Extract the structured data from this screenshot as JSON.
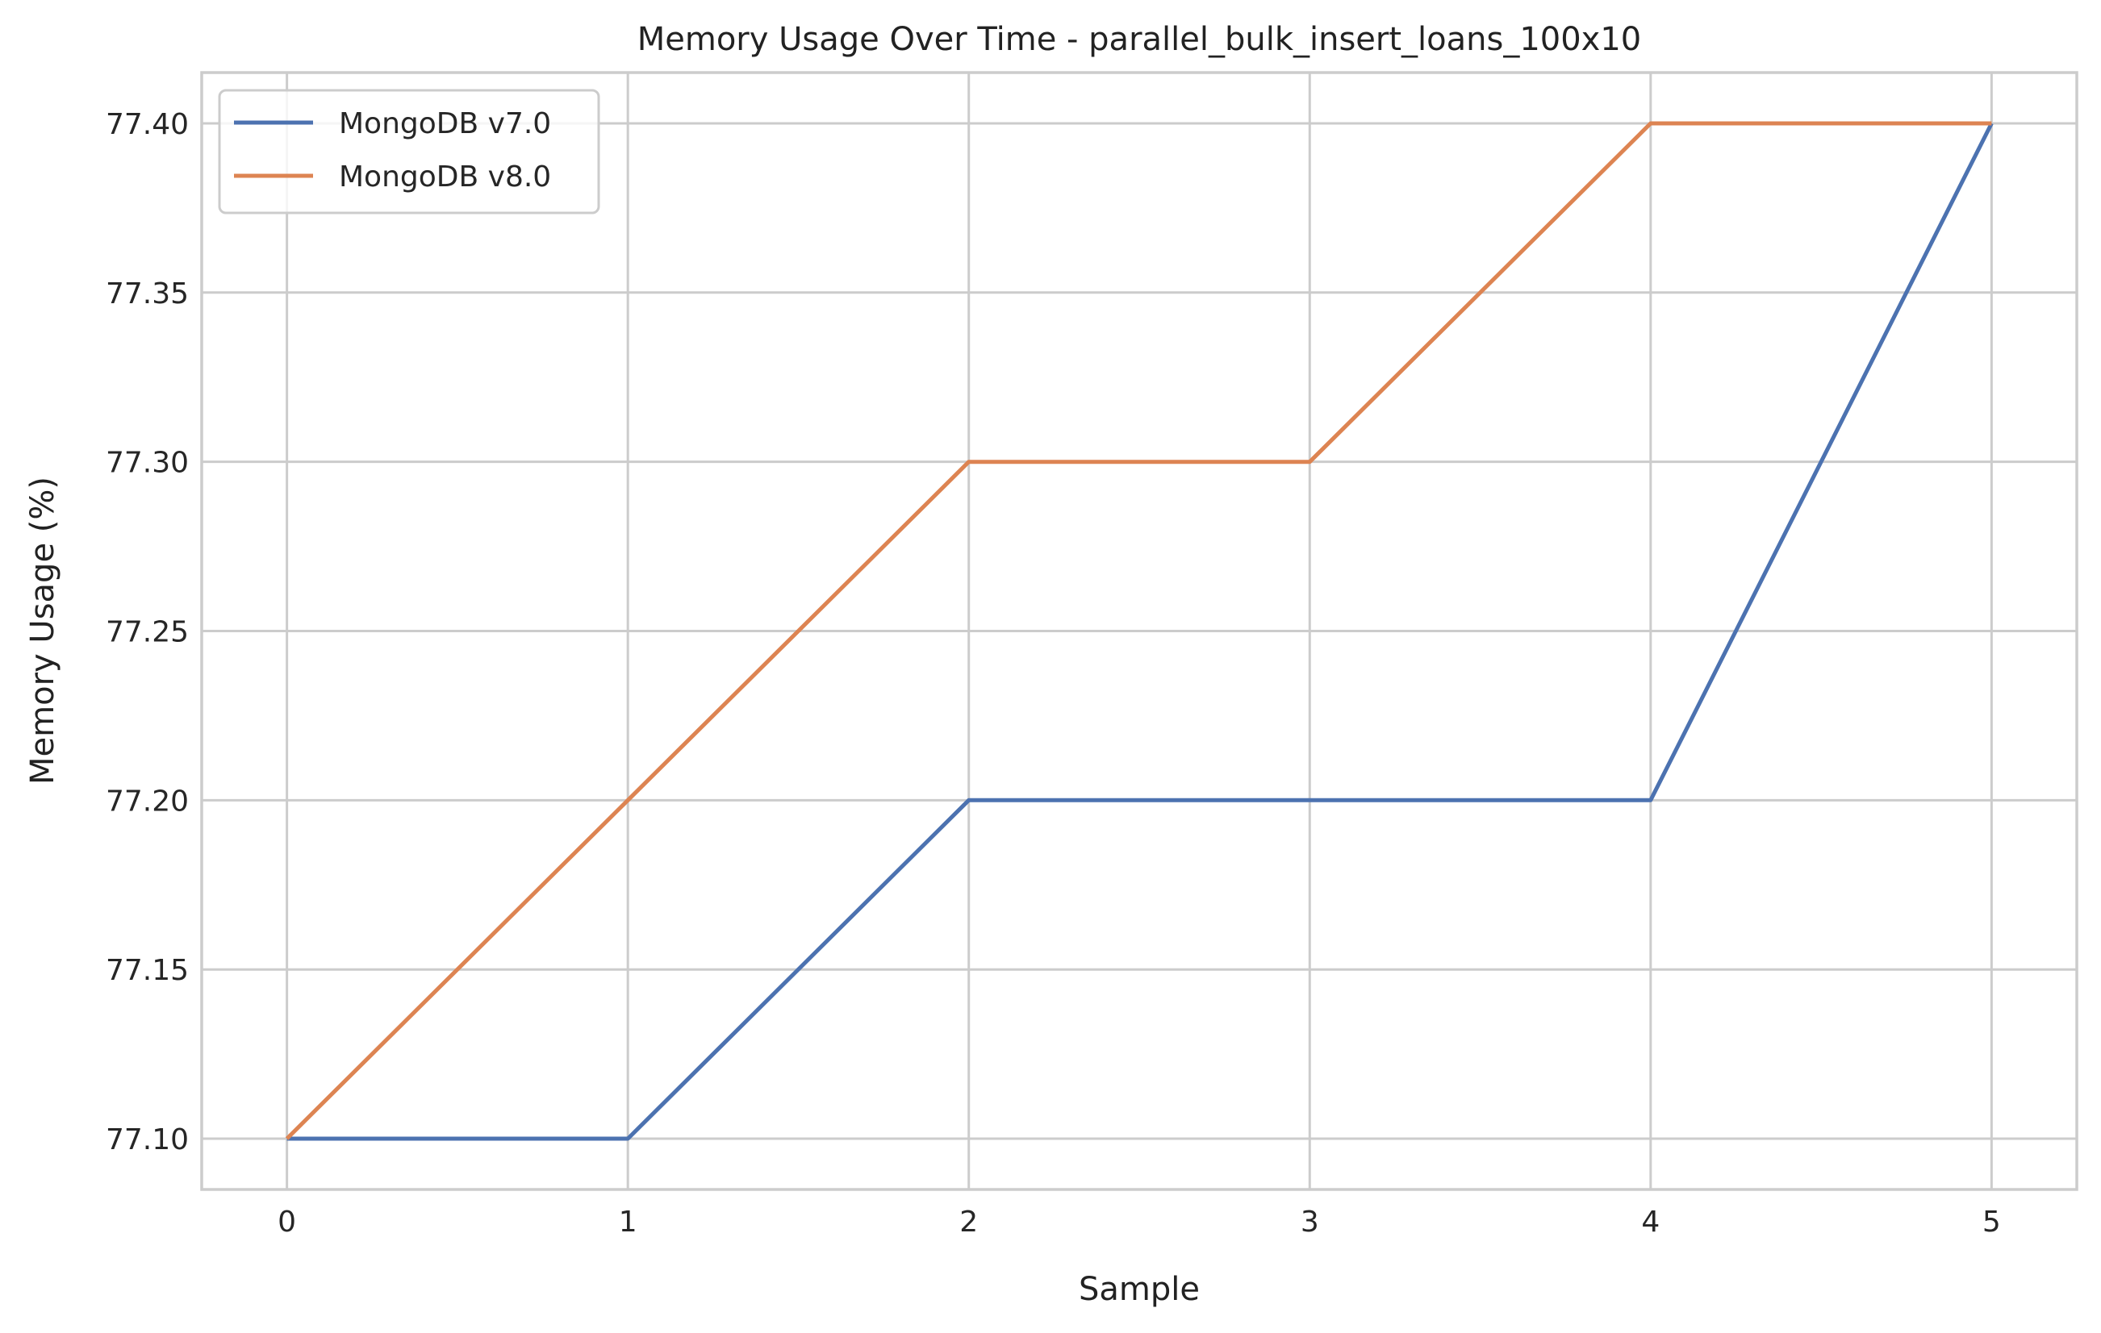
{
  "chart_data": {
    "type": "line",
    "title": "Memory Usage Over Time - parallel_bulk_insert_loans_100x10",
    "xlabel": "Sample",
    "ylabel": "Memory Usage (%)",
    "x": [
      0,
      1,
      2,
      3,
      4,
      5
    ],
    "xticks": [
      "0",
      "1",
      "2",
      "3",
      "4",
      "5"
    ],
    "yticks": [
      "77.10",
      "77.15",
      "77.20",
      "77.25",
      "77.30",
      "77.35",
      "77.40"
    ],
    "xlim": [
      -0.25,
      5.25
    ],
    "ylim": [
      77.085,
      77.415
    ],
    "grid": true,
    "legend_position": "top-left",
    "series": [
      {
        "name": "MongoDB v7.0",
        "color": "#4c72b0",
        "values": [
          77.1,
          77.1,
          77.2,
          77.2,
          77.2,
          77.4
        ]
      },
      {
        "name": "MongoDB v8.0",
        "color": "#dd8452",
        "values": [
          77.1,
          77.2,
          77.3,
          77.3,
          77.4,
          77.4
        ]
      }
    ]
  }
}
